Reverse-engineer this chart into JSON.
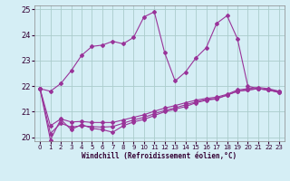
{
  "xlabel": "Windchill (Refroidissement éolien,°C)",
  "background_color": "#d5eef5",
  "grid_color": "#aacccc",
  "line_color": "#993399",
  "xlim": [
    -0.5,
    23.5
  ],
  "ylim": [
    19.85,
    25.15
  ],
  "yticks": [
    20,
    21,
    22,
    23,
    24,
    25
  ],
  "xticks": [
    0,
    1,
    2,
    3,
    4,
    5,
    6,
    7,
    8,
    9,
    10,
    11,
    12,
    13,
    14,
    15,
    16,
    17,
    18,
    19,
    20,
    21,
    22,
    23
  ],
  "series": [
    [
      21.9,
      21.8,
      22.1,
      22.6,
      23.2,
      23.55,
      23.6,
      23.75,
      23.65,
      23.9,
      24.7,
      24.9,
      23.3,
      22.2,
      22.55,
      23.1,
      23.5,
      24.45,
      24.75,
      23.85,
      22.0,
      21.9,
      21.85,
      21.8
    ],
    [
      21.9,
      19.9,
      20.7,
      20.3,
      20.5,
      20.35,
      20.3,
      20.2,
      20.45,
      20.6,
      20.7,
      20.85,
      21.0,
      21.1,
      21.2,
      21.35,
      21.45,
      21.5,
      21.65,
      21.8,
      21.85,
      21.9,
      21.85,
      21.75
    ],
    [
      21.9,
      20.15,
      20.55,
      20.4,
      20.45,
      20.42,
      20.4,
      20.42,
      20.55,
      20.68,
      20.78,
      20.92,
      21.05,
      21.15,
      21.27,
      21.38,
      21.48,
      21.52,
      21.65,
      21.8,
      21.85,
      21.9,
      21.85,
      21.75
    ],
    [
      21.9,
      20.45,
      20.72,
      20.6,
      20.62,
      20.58,
      20.58,
      20.58,
      20.68,
      20.78,
      20.88,
      21.02,
      21.14,
      21.24,
      21.35,
      21.45,
      21.52,
      21.57,
      21.68,
      21.85,
      21.9,
      21.95,
      21.9,
      21.8
    ]
  ]
}
